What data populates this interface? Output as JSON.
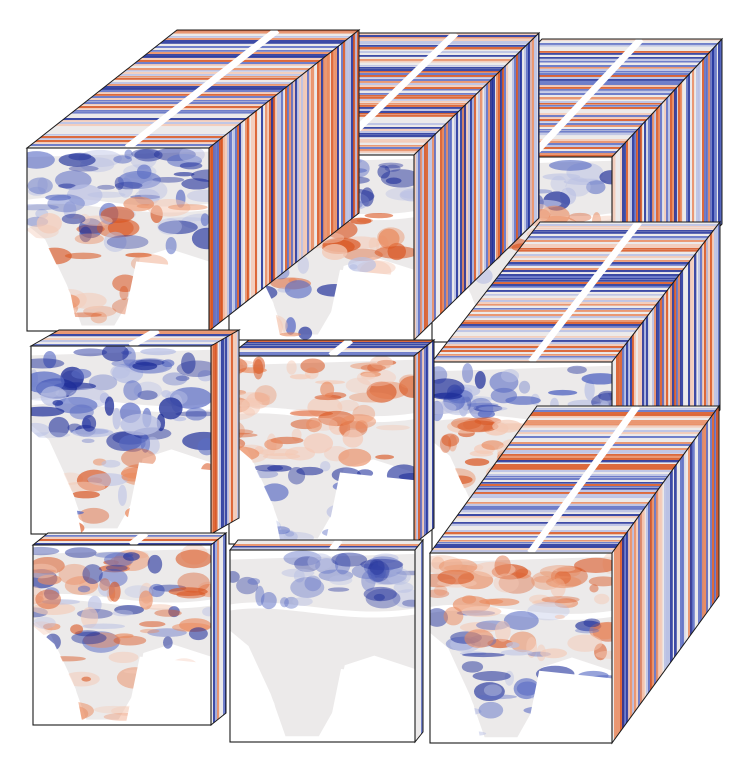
{
  "figure": {
    "title": "",
    "grid": {
      "rows": 3,
      "cols": 3
    },
    "palette": {
      "background": "#ffffff",
      "outline": "#1a1a1a",
      "land_base": "#eceaea",
      "negative_strong": "#1f2f9a",
      "negative_mid": "#5a6cc4",
      "negative_light": "#b9c0e4",
      "positive_strong": "#d9531e",
      "positive_mid": "#ea8a5e",
      "positive_light": "#f4c9b5"
    },
    "cubes": [
      {
        "row": 0,
        "col": 0,
        "map_style": "neg-north",
        "front_intensity": 0.6
      },
      {
        "row": 0,
        "col": 1,
        "map_style": "neg-strong-north",
        "front_intensity": 0.75
      },
      {
        "row": 0,
        "col": 2,
        "map_style": "neg-north-pos-band",
        "front_intensity": 0.7
      },
      {
        "row": 1,
        "col": 0,
        "map_style": "neg-dense",
        "front_intensity": 0.8
      },
      {
        "row": 1,
        "col": 1,
        "map_style": "pos-middle",
        "front_intensity": 0.6
      },
      {
        "row": 1,
        "col": 2,
        "map_style": "pos-strong-africa",
        "front_intensity": 0.85
      },
      {
        "row": 2,
        "col": 0,
        "map_style": "mixed-speckle",
        "front_intensity": 0.55
      },
      {
        "row": 2,
        "col": 1,
        "map_style": "sparse-top",
        "front_intensity": 0.35
      },
      {
        "row": 2,
        "col": 2,
        "map_style": "pos-south-neg",
        "front_intensity": 0.6
      }
    ]
  }
}
